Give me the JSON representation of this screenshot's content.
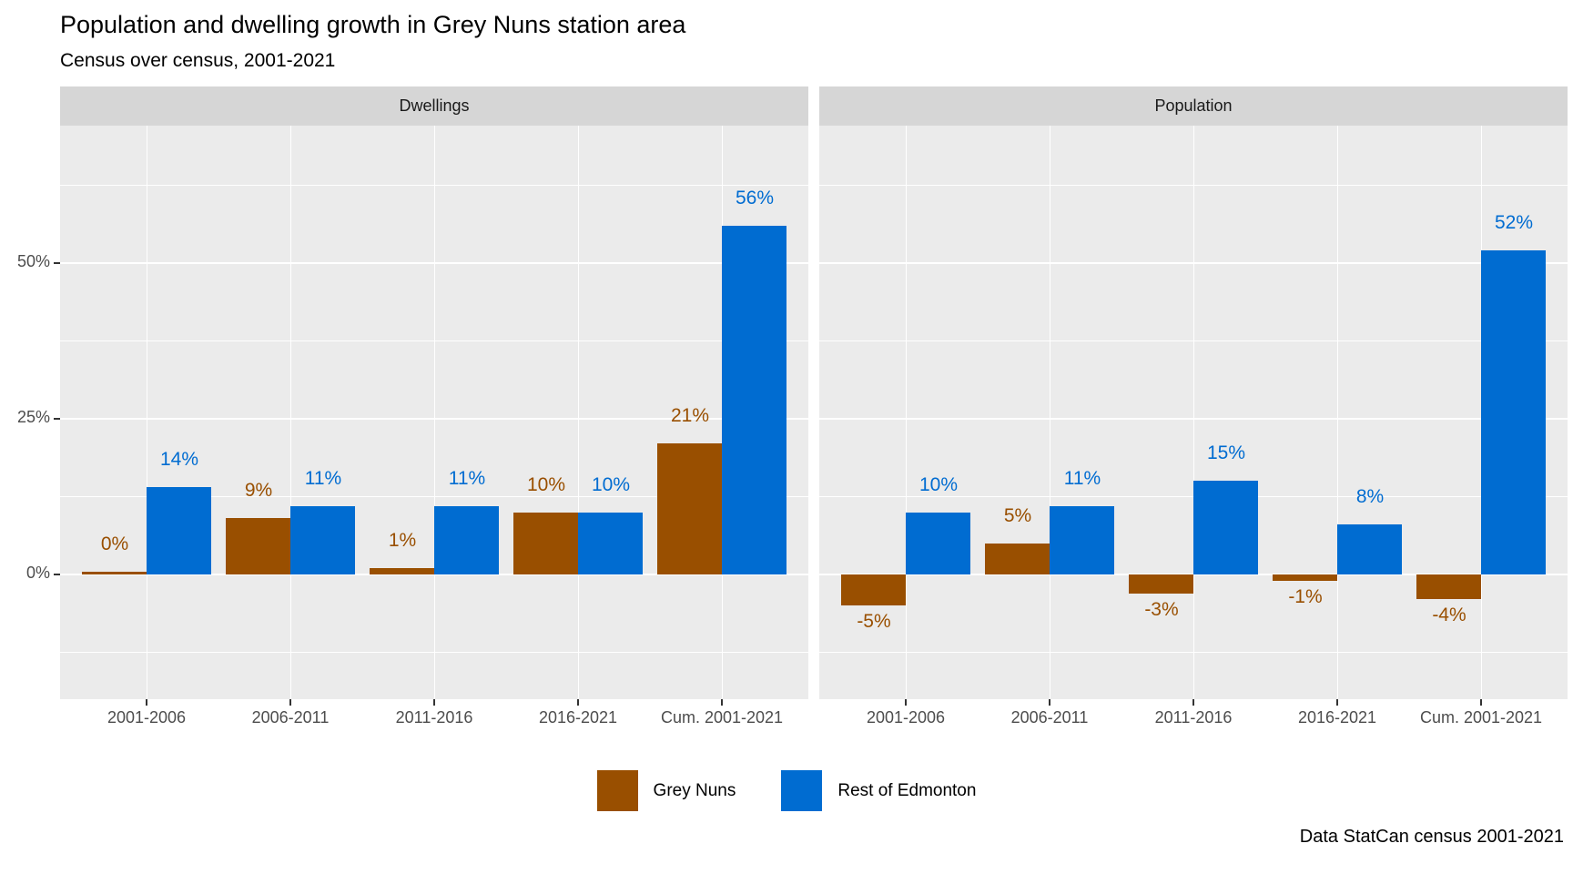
{
  "title": "Population and dwelling growth in Grey Nuns station area",
  "subtitle": "Census over census, 2001-2021",
  "caption": "Data StatCan census 2001-2021",
  "legend": {
    "position": "bottom",
    "items": [
      {
        "label": "Grey Nuns",
        "color": "#994F00"
      },
      {
        "label": "Rest of Edmonton",
        "color": "#006CD1"
      }
    ]
  },
  "chart_data": {
    "type": "bar",
    "title": "Population and dwelling growth in Grey Nuns station area",
    "subtitle": "Census over census, 2001-2021",
    "caption": "Data StatCan census 2001-2021",
    "categories": [
      "2001-2006",
      "2006-2011",
      "2011-2016",
      "2016-2021",
      "Cum. 2001-2021"
    ],
    "facets": [
      {
        "label": "Dwellings",
        "series": [
          {
            "name": "Grey Nuns",
            "color": "#994F00",
            "values": [
              0,
              9,
              1,
              10,
              21
            ]
          },
          {
            "name": "Rest of Edmonton",
            "color": "#006CD1",
            "values": [
              14,
              11,
              11,
              10,
              56
            ]
          }
        ]
      },
      {
        "label": "Population",
        "series": [
          {
            "name": "Grey Nuns",
            "color": "#994F00",
            "values": [
              -5,
              5,
              -3,
              -1,
              -4
            ]
          },
          {
            "name": "Rest of Edmonton",
            "color": "#006CD1",
            "values": [
              10,
              11,
              15,
              8,
              52
            ]
          }
        ]
      }
    ],
    "y_ticks": [
      {
        "label": "0%",
        "value": 0
      },
      {
        "label": "25%",
        "value": 25
      },
      {
        "label": "50%",
        "value": 50
      }
    ],
    "y_minor": [
      -12.5,
      12.5,
      37.5,
      62.5
    ],
    "ylim": [
      -20,
      72
    ],
    "value_suffix": "%",
    "grid": true,
    "panel_background": "#ebebeb",
    "strip_background": "#d6d6d6",
    "legend_position": "bottom"
  }
}
